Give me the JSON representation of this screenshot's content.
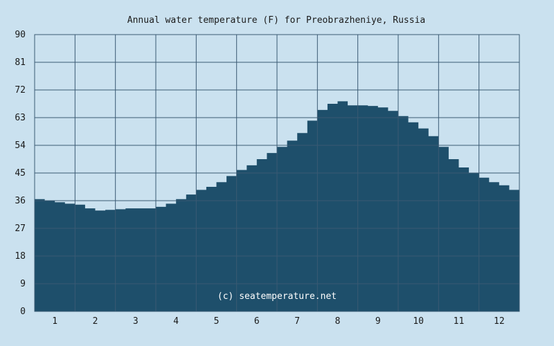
{
  "chart_data": {
    "type": "area",
    "title": "Annual water temperature (F) for Preobrazheniye, Russia",
    "xlabel": "",
    "ylabel": "",
    "x_tick_labels": [
      "1",
      "2",
      "3",
      "4",
      "5",
      "6",
      "7",
      "8",
      "9",
      "10",
      "11",
      "12"
    ],
    "y_tick_labels": [
      "0",
      "9",
      "18",
      "27",
      "36",
      "45",
      "54",
      "63",
      "72",
      "81",
      "90"
    ],
    "xlim": [
      0.5,
      12.5
    ],
    "ylim": [
      0,
      90
    ],
    "grid": true,
    "legend": "none",
    "watermark": "(c) seatemperature.net",
    "series": [
      {
        "x": [
          0.5,
          0.75,
          1.0,
          1.25,
          1.5,
          1.75,
          2.0,
          2.25,
          2.5,
          2.75,
          3.0,
          3.25,
          3.5,
          3.75,
          4.0,
          4.25,
          4.5,
          4.75,
          5.0,
          5.25,
          5.5,
          5.75,
          6.0,
          6.25,
          6.5,
          6.75,
          7.0,
          7.25,
          7.5,
          7.75,
          8.0,
          8.25,
          8.5,
          8.75,
          9.0,
          9.25,
          9.5,
          9.75,
          10.0,
          10.25,
          10.5,
          10.75,
          11.0,
          11.25,
          11.5,
          11.75,
          12.0,
          12.25,
          12.5
        ],
        "values": [
          36.5,
          36.0,
          35.5,
          35.0,
          34.7,
          33.5,
          32.8,
          33.0,
          33.2,
          33.5,
          33.5,
          33.5,
          34.0,
          35.0,
          36.5,
          38.0,
          39.5,
          40.5,
          42.0,
          44.0,
          46.0,
          47.5,
          49.5,
          51.5,
          53.5,
          55.5,
          58.0,
          62.0,
          65.5,
          67.5,
          68.3,
          67.0,
          67.0,
          66.8,
          66.3,
          65.2,
          63.5,
          61.5,
          59.5,
          57.0,
          53.5,
          49.5,
          46.8,
          45.0,
          43.5,
          42.0,
          41.0,
          39.5,
          38.2
        ]
      }
    ],
    "colors": {
      "background": "#cae1ef",
      "area_fill": "#1e4f6b",
      "grid": "#3a5a73",
      "text": "#1a1a1a",
      "watermark": "#ffffff"
    }
  }
}
